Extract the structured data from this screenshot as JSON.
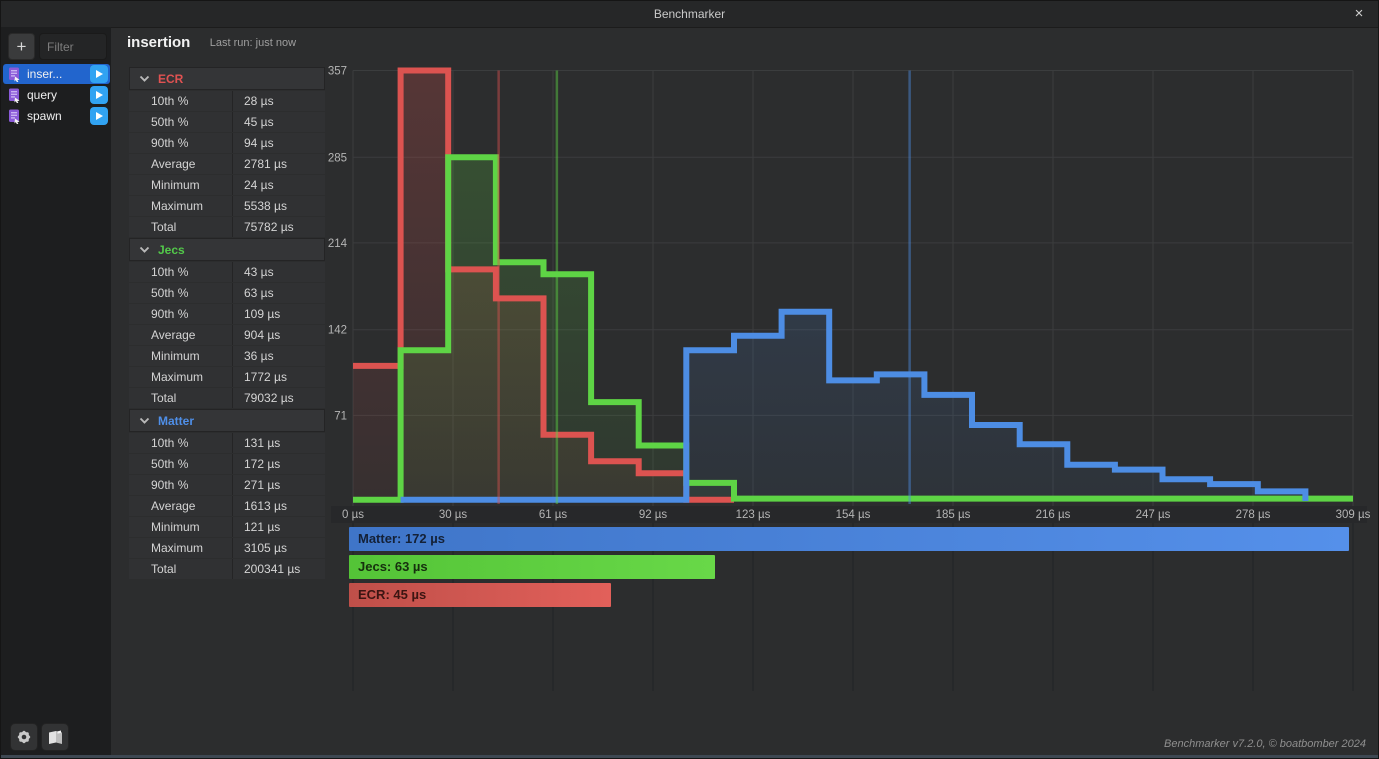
{
  "window": {
    "title": "Benchmarker",
    "close_glyph": "×"
  },
  "sidebar": {
    "add_label": "+",
    "filter_placeholder": "Filter",
    "items": [
      {
        "label": "inser...",
        "selected": true
      },
      {
        "label": "query",
        "selected": false
      },
      {
        "label": "spawn",
        "selected": false
      }
    ]
  },
  "header": {
    "title": "insertion",
    "last_run": "Last run: just now"
  },
  "stats": {
    "sections": [
      {
        "name": "ECR",
        "color": "#e05252",
        "rows": [
          [
            "10th %",
            "28 µs"
          ],
          [
            "50th %",
            "45 µs"
          ],
          [
            "90th %",
            "94 µs"
          ],
          [
            "Average",
            "2781 µs"
          ],
          [
            "Minimum",
            "24 µs"
          ],
          [
            "Maximum",
            "5538 µs"
          ],
          [
            "Total",
            "75782 µs"
          ]
        ]
      },
      {
        "name": "Jecs",
        "color": "#53c94a",
        "rows": [
          [
            "10th %",
            "43 µs"
          ],
          [
            "50th %",
            "63 µs"
          ],
          [
            "90th %",
            "109 µs"
          ],
          [
            "Average",
            "904 µs"
          ],
          [
            "Minimum",
            "36 µs"
          ],
          [
            "Maximum",
            "1772 µs"
          ],
          [
            "Total",
            "79032 µs"
          ]
        ]
      },
      {
        "name": "Matter",
        "color": "#4f8fe8",
        "rows": [
          [
            "10th %",
            "131 µs"
          ],
          [
            "50th %",
            "172 µs"
          ],
          [
            "90th %",
            "271 µs"
          ],
          [
            "Average",
            "1613 µs"
          ],
          [
            "Minimum",
            "121 µs"
          ],
          [
            "Maximum",
            "3105 µs"
          ],
          [
            "Total",
            "200341 µs"
          ]
        ]
      }
    ]
  },
  "chart_data": {
    "type": "step-histogram",
    "x_axis": {
      "unit": "µs",
      "min": 0,
      "max": 309,
      "ticks": [
        {
          "v": 0,
          "label": "0 µs"
        },
        {
          "v": 30.9,
          "label": "30 µs"
        },
        {
          "v": 61.8,
          "label": "61 µs"
        },
        {
          "v": 92.7,
          "label": "92 µs"
        },
        {
          "v": 123.6,
          "label": "123 µs"
        },
        {
          "v": 154.5,
          "label": "154 µs"
        },
        {
          "v": 185.4,
          "label": "185 µs"
        },
        {
          "v": 216.3,
          "label": "216 µs"
        },
        {
          "v": 247.2,
          "label": "247 µs"
        },
        {
          "v": 278.1,
          "label": "278 µs"
        },
        {
          "v": 309,
          "label": "309 µs"
        }
      ]
    },
    "y_axis": {
      "max": 357,
      "ticks": [
        357,
        285,
        214,
        142,
        71
      ]
    },
    "bin_width_us": 14.7143,
    "series": [
      {
        "name": "ECR",
        "color": "#dc5350",
        "median_us": 45,
        "start_bin": 0,
        "values": [
          112,
          357,
          192,
          168,
          55,
          33,
          23,
          1
        ]
      },
      {
        "name": "Jecs",
        "color": "#5ed445",
        "median_us": 63,
        "start_bin": 0,
        "values": [
          1,
          125,
          285,
          198,
          188,
          82,
          46,
          15,
          2,
          2,
          2,
          2,
          2,
          2,
          2,
          2,
          2,
          2,
          2,
          2,
          2
        ]
      },
      {
        "name": "Matter",
        "color": "#4d8de4",
        "median_us": 172,
        "start_bin": 1,
        "values": [
          1,
          1,
          1,
          1,
          1,
          1,
          125,
          137,
          157,
          100,
          105,
          88,
          63,
          47,
          30,
          26,
          18,
          14,
          8,
          0
        ]
      }
    ],
    "legend": {
      "max_us": 172,
      "bars": [
        {
          "label": "Matter: 172 µs",
          "value_us": 172,
          "from": "#3f75c8",
          "to": "#5590ea",
          "text": "#142137"
        },
        {
          "label": "Jecs: 63 µs",
          "value_us": 63,
          "from": "#54c437",
          "to": "#68d848",
          "text": "#16300e"
        },
        {
          "label": "ECR: 45 µs",
          "value_us": 45,
          "from": "#bf4f49",
          "to": "#e2605a",
          "text": "#3c1512"
        }
      ]
    }
  },
  "footer": {
    "credit": "Benchmarker v7.2.0, © boatbomber 2024"
  }
}
